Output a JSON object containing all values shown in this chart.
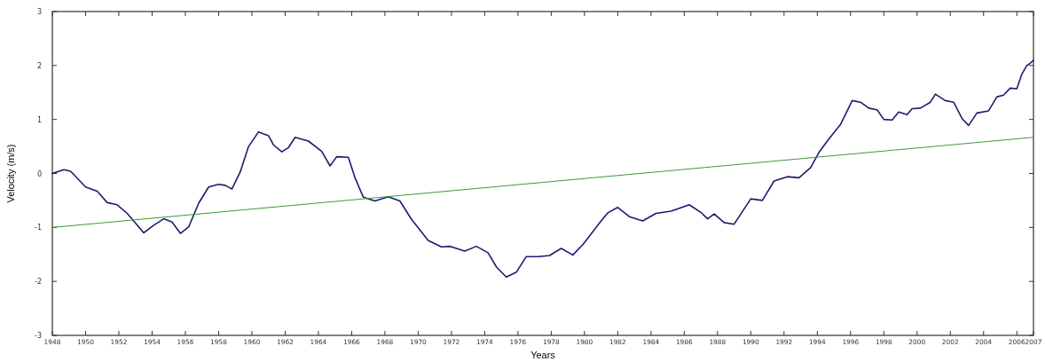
{
  "chart_data": {
    "type": "line",
    "xlabel": "Years",
    "ylabel": "Velocity (m/s)",
    "xlim": [
      1948,
      2007
    ],
    "ylim": [
      -3,
      3
    ],
    "xticks": [
      1948,
      1950,
      1952,
      1954,
      1956,
      1958,
      1960,
      1962,
      1964,
      1966,
      1968,
      1970,
      1972,
      1974,
      1976,
      1978,
      1980,
      1982,
      1984,
      1986,
      1988,
      1990,
      1992,
      1994,
      1996,
      1998,
      2000,
      2002,
      2004,
      2006,
      2007
    ],
    "yticks": [
      -3,
      -2,
      -1,
      0,
      1,
      2,
      3
    ],
    "grid": false,
    "marker": "none",
    "line_style": "solid",
    "series": [
      {
        "color": "#1c1c6e",
        "x": [
          1948,
          1948.7,
          1949.1,
          1950,
          1950.7,
          1951.3,
          1951.9,
          1952.5,
          1953.5,
          1954.1,
          1954.7,
          1955.2,
          1955.7,
          1956.2,
          1956.8,
          1957.4,
          1958,
          1958.4,
          1958.8,
          1959.3,
          1959.8,
          1960.4,
          1961,
          1961.3,
          1961.8,
          1962.2,
          1962.6,
          1963.4,
          1964.2,
          1964.7,
          1965.1,
          1965.8,
          1966.2,
          1966.7,
          1967.4,
          1968.2,
          1968.9,
          1969.6,
          1970.6,
          1971.4,
          1971.9,
          1972.8,
          1973.5,
          1974.2,
          1974.7,
          1975.3,
          1975.9,
          1976.5,
          1977.2,
          1977.9,
          1978.6,
          1979.3,
          1979.9,
          1981,
          1981.4,
          1982,
          1982.7,
          1983.5,
          1984.3,
          1985.2,
          1986.3,
          1987,
          1987.4,
          1987.8,
          1988.4,
          1989,
          1990,
          1990.7,
          1991.4,
          1992.2,
          1992.9,
          1993.6,
          1994.1,
          1994.7,
          1995.4,
          1996.1,
          1996.6,
          1997.1,
          1997.6,
          1998,
          1998.5,
          1998.9,
          1999.4,
          1999.7,
          2000.2,
          2000.8,
          2001.1,
          2001.7,
          2002.2,
          2002.7,
          2003.1,
          2003.6,
          2004.3,
          2004.8,
          2005.2,
          2005.6,
          2006,
          2006.3,
          2006.6,
          2006.8,
          2007
        ],
        "values": [
          0,
          0.07,
          0.04,
          -0.25,
          -0.33,
          -0.54,
          -0.58,
          -0.74,
          -1.1,
          -0.96,
          -0.84,
          -0.9,
          -1.11,
          -0.99,
          -0.55,
          -0.25,
          -0.2,
          -0.22,
          -0.29,
          0.03,
          0.5,
          0.77,
          0.7,
          0.53,
          0.4,
          0.48,
          0.67,
          0.6,
          0.41,
          0.14,
          0.31,
          0.3,
          -0.08,
          -0.44,
          -0.51,
          -0.43,
          -0.51,
          -0.85,
          -1.24,
          -1.36,
          -1.35,
          -1.44,
          -1.35,
          -1.47,
          -1.73,
          -1.92,
          -1.83,
          -1.54,
          -1.54,
          -1.52,
          -1.39,
          -1.51,
          -1.32,
          -0.88,
          -0.73,
          -0.63,
          -0.8,
          -0.88,
          -0.74,
          -0.7,
          -0.58,
          -0.72,
          -0.84,
          -0.75,
          -0.91,
          -0.94,
          -0.47,
          -0.5,
          -0.14,
          -0.06,
          -0.08,
          0.11,
          0.39,
          0.64,
          0.91,
          1.35,
          1.32,
          1.21,
          1.18,
          1.0,
          0.99,
          1.14,
          1.09,
          1.2,
          1.21,
          1.32,
          1.47,
          1.35,
          1.32,
          1.02,
          0.89,
          1.12,
          1.16,
          1.42,
          1.45,
          1.58,
          1.57,
          1.84,
          2.0,
          2.04,
          2.1
        ]
      },
      {
        "color": "#3a9a3a",
        "x": [
          1948,
          2007
        ],
        "values": [
          -1.0,
          0.67
        ]
      }
    ]
  }
}
